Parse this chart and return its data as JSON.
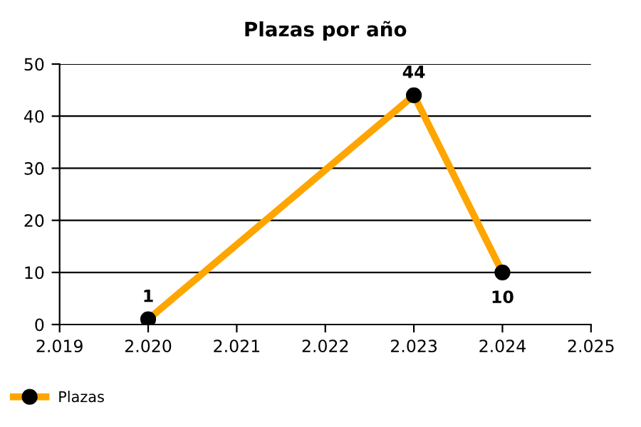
{
  "chart_data": {
    "type": "line",
    "title": "Plazas por año",
    "x": [
      2020,
      2023,
      2024
    ],
    "series": [
      {
        "name": "Plazas",
        "color": "#ffa500",
        "values": [
          1,
          44,
          10
        ]
      }
    ],
    "xlim": [
      2019,
      2025
    ],
    "xticks": [
      {
        "value": 2019,
        "label": "2.019"
      },
      {
        "value": 2020,
        "label": "2.020"
      },
      {
        "value": 2021,
        "label": "2.021"
      },
      {
        "value": 2022,
        "label": "2.022"
      },
      {
        "value": 2023,
        "label": "2.023"
      },
      {
        "value": 2024,
        "label": "2.024"
      },
      {
        "value": 2025,
        "label": "2.025"
      }
    ],
    "ylim": [
      0,
      50
    ],
    "yticks": [
      0,
      10,
      20,
      30,
      40,
      50
    ],
    "grid": "y",
    "legend": "bottom left",
    "marker": "circle",
    "line_style": "solid",
    "data_labels": true
  }
}
